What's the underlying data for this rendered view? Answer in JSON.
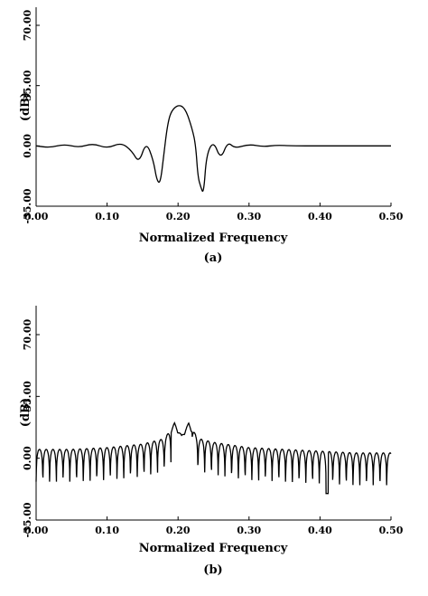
{
  "chart_data": [
    {
      "type": "line",
      "panel_label": "(a)",
      "xlabel": "Normalized Frequency",
      "ylabel": "(dB)",
      "xlim": [
        0.0,
        0.5
      ],
      "ylim": [
        -35.0,
        70.0
      ],
      "x_ticks": [
        "0.00",
        "0.10",
        "0.20",
        "0.30",
        "0.40",
        "0.50"
      ],
      "y_ticks": [
        "-35.00",
        "0.00",
        "35.00",
        "70.00"
      ],
      "grid": false,
      "legend": "none",
      "x": [
        0.0,
        0.02,
        0.04,
        0.06,
        0.08,
        0.1,
        0.12,
        0.135,
        0.145,
        0.155,
        0.165,
        0.17,
        0.175,
        0.18,
        0.185,
        0.19,
        0.2,
        0.21,
        0.22,
        0.225,
        0.228,
        0.232,
        0.236,
        0.24,
        0.25,
        0.26,
        0.27,
        0.28,
        0.3,
        0.32,
        0.34,
        0.36,
        0.4,
        0.45,
        0.5
      ],
      "values": [
        0.0,
        -1.0,
        1.0,
        -1.0,
        1.5,
        -1.5,
        2.0,
        -3.0,
        -10.0,
        2.5,
        -8.0,
        -20.0,
        -22.0,
        -5.0,
        12.0,
        20.0,
        24.0,
        22.0,
        10.0,
        0.0,
        -18.0,
        -24.0,
        -28.0,
        -5.0,
        3.0,
        -8.0,
        2.5,
        -1.5,
        1.0,
        -0.5,
        0.5,
        0.0,
        0.0,
        0.0,
        0.0
      ]
    },
    {
      "type": "line",
      "panel_label": "(b)",
      "xlabel": "Normalized Frequency",
      "ylabel": "(dB)",
      "xlim": [
        0.0,
        0.5
      ],
      "ylim": [
        -35.0,
        70.0
      ],
      "x_ticks": [
        "0.00",
        "0.10",
        "0.20",
        "0.30",
        "0.40",
        "0.50"
      ],
      "y_ticks": [
        "-35.00",
        "0.00",
        "35.00",
        "70.00"
      ],
      "grid": false,
      "legend": "none",
      "x": [
        0.0,
        0.05,
        0.1,
        0.15,
        0.18,
        0.19,
        0.195,
        0.2,
        0.205,
        0.21,
        0.215,
        0.22,
        0.23,
        0.25,
        0.3,
        0.35,
        0.4,
        0.45,
        0.5
      ],
      "envelope": [
        5.0,
        5.0,
        6.0,
        8.0,
        11.0,
        16.0,
        20.0,
        16.0,
        13.0,
        16.0,
        20.0,
        16.0,
        11.0,
        9.0,
        6.0,
        5.0,
        4.0,
        3.0,
        3.0
      ],
      "notch_depth": -20.0,
      "deep_notch": {
        "x": 0.41,
        "value": -35.0
      }
    }
  ]
}
